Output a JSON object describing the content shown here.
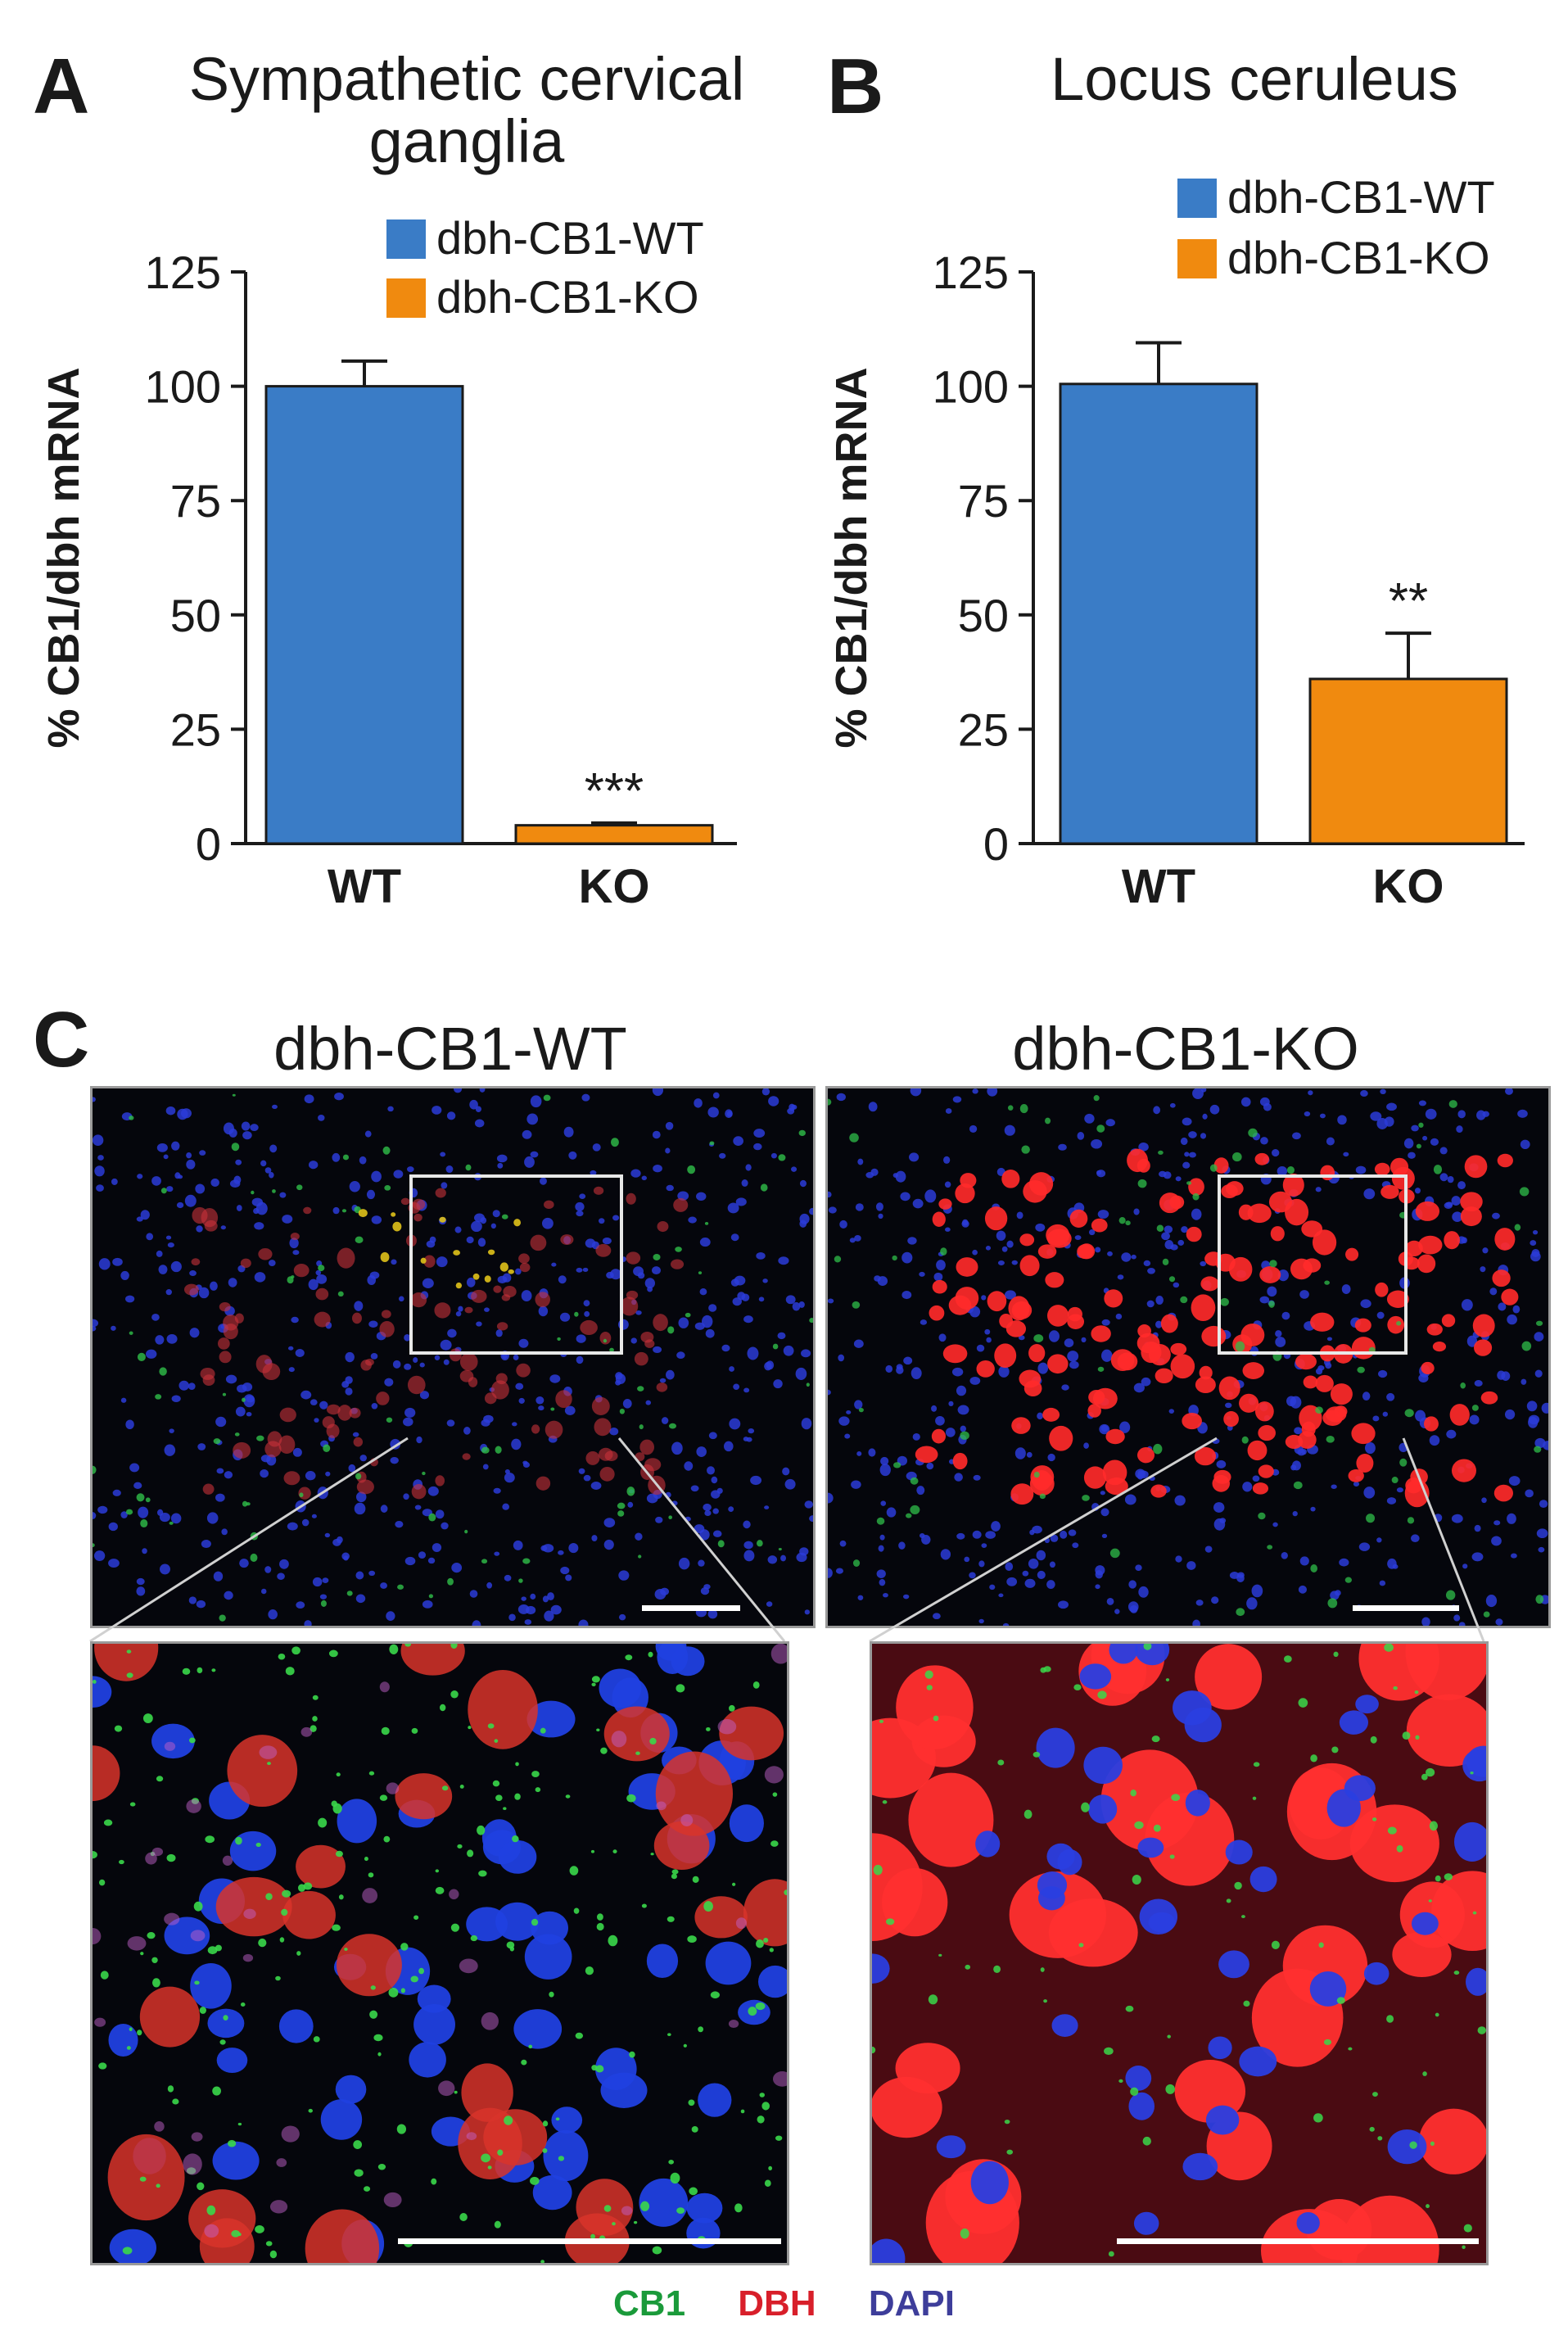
{
  "panels": {
    "A": {
      "letter": "A",
      "title_line1": "Sympathetic cervical",
      "title_line2": "ganglia"
    },
    "B": {
      "letter": "B",
      "title_line1": "Locus ceruleus"
    },
    "C": {
      "letter": "C",
      "left_title": "dbh-CB1-WT",
      "right_title": "dbh-CB1-KO"
    }
  },
  "legend": {
    "wt": {
      "label": "dbh-CB1-WT",
      "color": "#3a7cc6"
    },
    "ko": {
      "label": "dbh-CB1-KO",
      "color": "#f08a0f"
    }
  },
  "stain_legend": {
    "cb1": {
      "label": "CB1",
      "color": "#1a9a3a"
    },
    "dbh": {
      "label": "DBH",
      "color": "#d81f2a"
    },
    "dapi": {
      "label": "DAPI",
      "color": "#3d3d9a"
    }
  },
  "chart_data": [
    {
      "type": "bar",
      "title": "Sympathetic cervical ganglia",
      "categories": [
        "WT",
        "KO"
      ],
      "values": [
        100,
        4
      ],
      "errors": [
        5.5,
        0.5
      ],
      "significance": [
        "",
        "***"
      ],
      "ylabel": "% CB1/dbh mRNA",
      "ylim": [
        0,
        125
      ],
      "yticks": [
        "0",
        "25",
        "50",
        "75",
        "100",
        "125"
      ],
      "legend": [
        "dbh-CB1-WT",
        "dbh-CB1-KO"
      ],
      "colors": [
        "#3a7cc6",
        "#f08a0f"
      ]
    },
    {
      "type": "bar",
      "title": "Locus ceruleus",
      "categories": [
        "WT",
        "KO"
      ],
      "values": [
        100.5,
        36
      ],
      "errors": [
        9,
        10
      ],
      "significance": [
        "",
        "**"
      ],
      "ylabel": "% CB1/dbh mRNA",
      "ylim": [
        0,
        125
      ],
      "yticks": [
        "0",
        "25",
        "50",
        "75",
        "100",
        "125"
      ],
      "legend": [
        "dbh-CB1-WT",
        "dbh-CB1-KO"
      ],
      "colors": [
        "#3a7cc6",
        "#f08a0f"
      ]
    }
  ]
}
